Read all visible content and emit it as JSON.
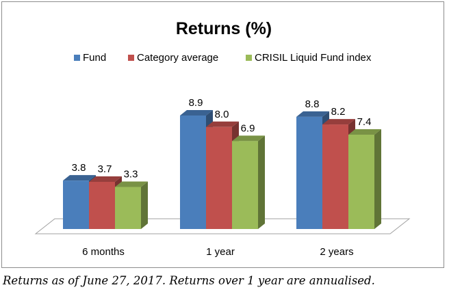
{
  "caption": "Returns as of June 27, 2017. Returns over 1 year are annualised.",
  "chart_data": {
    "type": "bar",
    "title": "Returns (%)",
    "categories": [
      "6 months",
      "1 year",
      "2 years"
    ],
    "series": [
      {
        "name": "Fund",
        "values": [
          3.8,
          8.9,
          8.8
        ],
        "color": "#4a7ebb"
      },
      {
        "name": "Category average",
        "values": [
          3.7,
          8.0,
          8.2
        ],
        "color": "#c0504d"
      },
      {
        "name": "CRISIL Liquid Fund index",
        "values": [
          3.3,
          6.9,
          7.4
        ],
        "color": "#9bbb59"
      }
    ],
    "value_labels": [
      [
        "3.8",
        "8.9",
        "8.8"
      ],
      [
        "3.7",
        "8.0",
        "8.2"
      ],
      [
        "3.3",
        "6.9",
        "7.4"
      ]
    ],
    "legend_position": "top",
    "grid": false,
    "ylim": [
      0,
      10
    ]
  }
}
